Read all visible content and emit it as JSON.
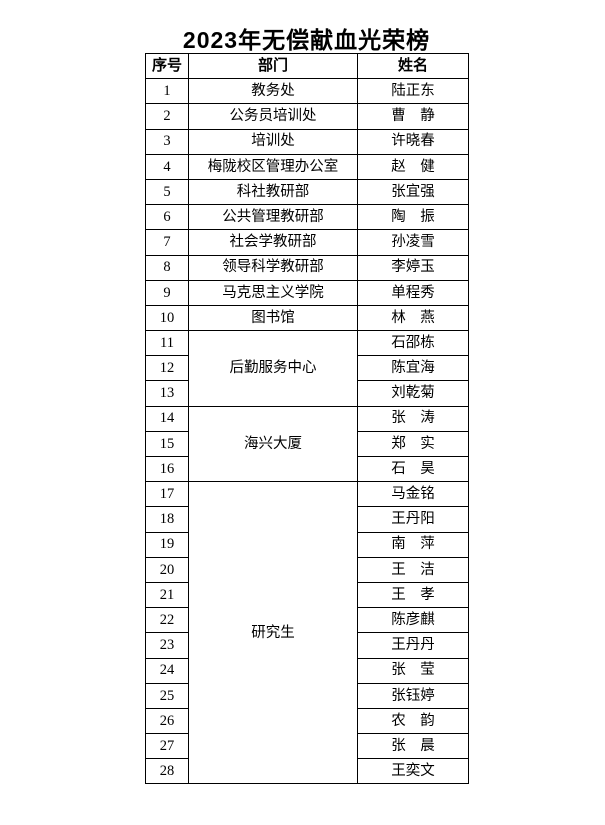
{
  "title": "2023年无偿献血光荣榜",
  "table": {
    "headers": {
      "no": "序号",
      "dept": "部门",
      "name": "姓名"
    },
    "rows": [
      {
        "no": "1",
        "dept": "教务处",
        "name": "陆正东"
      },
      {
        "no": "2",
        "dept": "公务员培训处",
        "name": "曹　静"
      },
      {
        "no": "3",
        "dept": "培训处",
        "name": "许晓春"
      },
      {
        "no": "4",
        "dept": "梅陇校区管理办公室",
        "name": "赵　健"
      },
      {
        "no": "5",
        "dept": "科社教研部",
        "name": "张宜强"
      },
      {
        "no": "6",
        "dept": "公共管理教研部",
        "name": "陶　振"
      },
      {
        "no": "7",
        "dept": "社会学教研部",
        "name": "孙凌雪"
      },
      {
        "no": "8",
        "dept": "领导科学教研部",
        "name": "李婷玉"
      },
      {
        "no": "9",
        "dept": "马克思主义学院",
        "name": "单程秀"
      },
      {
        "no": "10",
        "dept": "图书馆",
        "name": "林　燕"
      },
      {
        "no": "11",
        "dept": "后勤服务中心",
        "name": "石邵栋"
      },
      {
        "no": "12",
        "name": "陈宜海"
      },
      {
        "no": "13",
        "name": "刘乾菊"
      },
      {
        "no": "14",
        "dept": "海兴大厦",
        "name": "张　涛"
      },
      {
        "no": "15",
        "name": "郑　实"
      },
      {
        "no": "16",
        "name": "石　昊"
      },
      {
        "no": "17",
        "dept": "研究生",
        "name": "马金铭"
      },
      {
        "no": "18",
        "name": "王丹阳"
      },
      {
        "no": "19",
        "name": "南　萍"
      },
      {
        "no": "20",
        "name": "王　洁"
      },
      {
        "no": "21",
        "name": "王　孝"
      },
      {
        "no": "22",
        "name": "陈彦麒"
      },
      {
        "no": "23",
        "name": "王丹丹"
      },
      {
        "no": "24",
        "name": "张　莹"
      },
      {
        "no": "25",
        "name": "张钰婷"
      },
      {
        "no": "26",
        "name": "农　韵"
      },
      {
        "no": "27",
        "name": "张　晨"
      },
      {
        "no": "28",
        "name": "王奕文"
      }
    ]
  }
}
